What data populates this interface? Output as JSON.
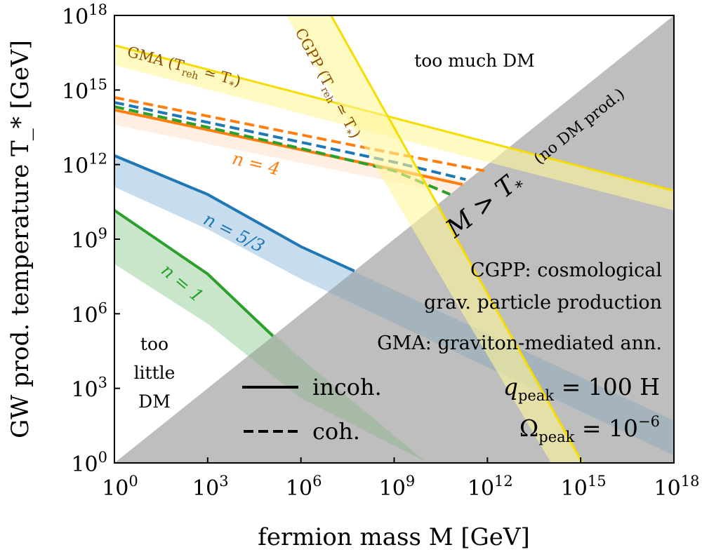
{
  "chart_data": {
    "type": "line",
    "xlabel": "fermion mass M [GeV]",
    "ylabel": "GW prod. temperature T_* [GeV]",
    "xscale": "log",
    "yscale": "log",
    "xlim_log10": [
      0,
      18
    ],
    "ylim_log10": [
      0,
      18
    ],
    "x_ticks": [
      "10^0",
      "10^3",
      "10^6",
      "10^9",
      "10^12",
      "10^15",
      "10^18"
    ],
    "y_ticks": [
      "10^0",
      "10^3",
      "10^6",
      "10^9",
      "10^12",
      "10^15",
      "10^18"
    ],
    "grid": false,
    "colors": {
      "n4": "#ff7f0e",
      "n53": "#1f77b4",
      "n1": "#2ca02c",
      "yellow": "#f5dd00",
      "band_yellow": "#fff59a",
      "excluded": "#bbbbbb",
      "gma_text": "#8a4f00"
    },
    "excluded_region": {
      "label_main": "M > T",
      "label_sub": "*",
      "label_note": "(no DM prod.)",
      "condition": "M > T_*"
    },
    "series": [
      {
        "name": "n = 4",
        "color": "#ff7f0e",
        "style": "incoh.",
        "points_log10": [
          [
            0,
            14.2
          ],
          [
            3,
            13.4
          ],
          [
            6,
            12.6
          ],
          [
            9,
            11.8
          ],
          [
            11.2,
            11.2
          ]
        ]
      },
      {
        "color": "#ff7f0e",
        "style": "coh.",
        "points_log10": [
          [
            0,
            14.7
          ],
          [
            3,
            13.95
          ],
          [
            6,
            13.2
          ],
          [
            9,
            12.45
          ],
          [
            11.9,
            11.75
          ]
        ]
      },
      {
        "color": "#1f77b4",
        "style": "coh.",
        "points_log10": [
          [
            0,
            14.5
          ],
          [
            3,
            13.7
          ],
          [
            6,
            12.9
          ],
          [
            9,
            12.1
          ],
          [
            11.3,
            11.4
          ]
        ]
      },
      {
        "color": "#2ca02c",
        "style": "coh.",
        "points_log10": [
          [
            0,
            14.33
          ],
          [
            3,
            13.5
          ],
          [
            6,
            12.65
          ],
          [
            9,
            11.75
          ],
          [
            10.8,
            10.8
          ]
        ]
      },
      {
        "name": "n = 5/3",
        "color": "#1f77b4",
        "style": "incoh.",
        "points_log10": [
          [
            0,
            12.36
          ],
          [
            3,
            10.8
          ],
          [
            6,
            8.7
          ],
          [
            7.72,
            7.72
          ]
        ]
      },
      {
        "name": "n = 1",
        "color": "#2ca02c",
        "style": "incoh.",
        "points_log10": [
          [
            0,
            10.16
          ],
          [
            3,
            7.6
          ],
          [
            5.1,
            5.1
          ]
        ]
      }
    ],
    "bands": [
      {
        "color": "#ff7f0e",
        "upper_log10": [
          [
            0,
            14.2
          ],
          [
            18,
            9.6
          ]
        ],
        "lower_log10": [
          [
            0,
            13.6
          ],
          [
            18,
            9.0
          ]
        ]
      },
      {
        "color": "#1f77b4",
        "upper_log10": [
          [
            0,
            12.36
          ],
          [
            3,
            10.8
          ],
          [
            6,
            8.7
          ],
          [
            18,
            1.7
          ]
        ],
        "lower_log10": [
          [
            0,
            11.1
          ],
          [
            3,
            9.4
          ],
          [
            6,
            7.4
          ],
          [
            18,
            0.3
          ]
        ]
      },
      {
        "color": "#2ca02c",
        "upper_log10": [
          [
            0,
            10.16
          ],
          [
            3,
            7.6
          ],
          [
            6,
            4.2
          ],
          [
            12,
            -2
          ]
        ],
        "lower_log10": [
          [
            0,
            8.0
          ],
          [
            3,
            5.6
          ],
          [
            6,
            2.6
          ],
          [
            10.1,
            0
          ],
          [
            12,
            -2
          ]
        ]
      },
      {
        "name": "GMA (T_reh ≃ T_*)",
        "color": "#f5dd00",
        "upper_log10": [
          [
            0,
            16.8
          ],
          [
            18,
            10.95
          ]
        ],
        "lower_log10": [
          [
            0,
            16.0
          ],
          [
            18,
            10.16
          ]
        ]
      },
      {
        "name": "CGPP (T_reh ≃ T_*)",
        "color": "#f5dd00",
        "left_log10": [
          [
            5.24,
            18.6
          ],
          [
            14.05,
            0
          ]
        ],
        "right_log10": [
          [
            6.7,
            18.6
          ],
          [
            15.06,
            0
          ]
        ]
      }
    ],
    "annotations": {
      "too_much": "too much DM",
      "too_little": [
        "too",
        "little",
        "DM"
      ],
      "n4": "n = 4",
      "n53": "n = 5/3",
      "n1": "n = 1",
      "gma_band": "GMA (T",
      "gma_band_sub": "reh",
      "gma_band_rest": " ≃ T",
      "gma_band_star": "*",
      "gma_band_close": ")",
      "cgpp_band": "CGPP (T",
      "cgpp_band_sub": "reh",
      "cgpp_band_rest": " ≃ T",
      "cgpp_band_star": "*",
      "cgpp_band_close": ")",
      "cgpp_def_1": "CGPP: cosmological",
      "cgpp_def_2": "grav. particle production",
      "gma_def": "GMA: graviton-mediated ann.",
      "qpeak": "q",
      "qpeak_sub": "peak",
      "qpeak_val": " = 100 H",
      "omega": "Ω",
      "omega_sub": "peak",
      "omega_val": " = 10",
      "omega_exp": "−6"
    },
    "legend": {
      "placement": "bottom-center",
      "items": [
        {
          "label": "incoh.",
          "style": "solid"
        },
        {
          "label": "coh.",
          "style": "dashed"
        }
      ]
    }
  }
}
